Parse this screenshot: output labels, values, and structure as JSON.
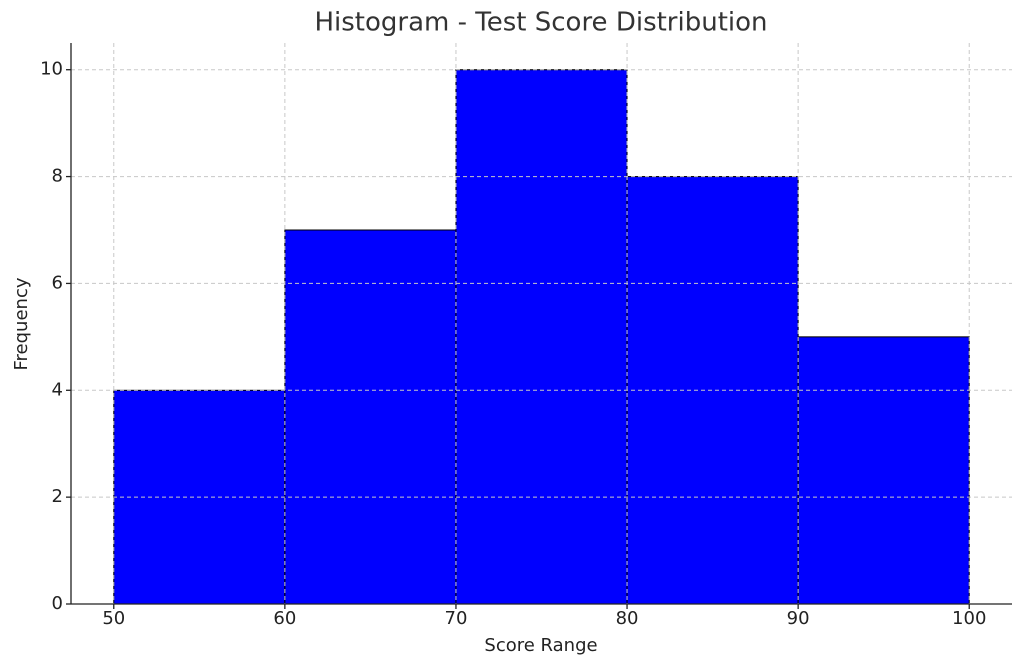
{
  "chart_data": {
    "type": "histogram",
    "title": "Histogram - Test Score Distribution",
    "x_label": "Score Range",
    "y_label": "Frequency",
    "bins": [
      50,
      60,
      70,
      80,
      90,
      100
    ],
    "values": [
      4,
      7,
      10,
      8,
      5
    ],
    "color": "#0000ff",
    "edgecolor": "#000000",
    "xlim": [
      47.5,
      102.5
    ],
    "xticks": [
      50,
      60,
      70,
      80,
      90,
      100
    ],
    "ylim": [
      0,
      10.5
    ],
    "yticks": [
      0,
      2,
      4,
      6,
      8,
      10
    ],
    "grid": true
  }
}
